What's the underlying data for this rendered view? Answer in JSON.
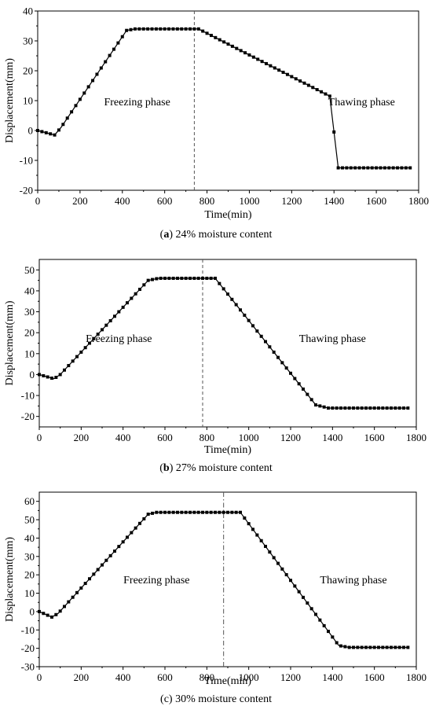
{
  "chart_data": [
    {
      "type": "line",
      "caption_letter": "a",
      "caption_text": " 24% moisture content",
      "xlabel": "Time(min)",
      "ylabel": "Displacement(mm)",
      "xlim": [
        0,
        1800
      ],
      "ylim": [
        -20,
        40
      ],
      "xticks": [
        0,
        200,
        400,
        600,
        800,
        1000,
        1200,
        1400,
        1600,
        1800
      ],
      "yticks": [
        -20,
        -10,
        0,
        10,
        20,
        30,
        40
      ],
      "divider_x": 740,
      "divider_style": "dashed",
      "annotations": [
        {
          "text": "Freezing phase",
          "x": 470,
          "y": 9.5
        },
        {
          "text": "Thawing phase",
          "x": 1530,
          "y": 9.5
        }
      ],
      "series": [
        {
          "x": [
            0,
            80,
            110,
            420,
            460,
            760,
            1380,
            1420,
            1760
          ],
          "y": [
            0,
            -1.5,
            1,
            33.5,
            34,
            34,
            11.5,
            -12.5,
            -12.5
          ]
        }
      ],
      "marker_step": 20
    },
    {
      "type": "line",
      "caption_letter": "b",
      "caption_text": " 27% moisture content",
      "xlabel": "Time(min)",
      "ylabel": "Displacement(mm)",
      "xlim": [
        0,
        1800
      ],
      "ylim": [
        -25,
        55
      ],
      "xticks": [
        0,
        200,
        400,
        600,
        800,
        1000,
        1200,
        1400,
        1600,
        1800
      ],
      "yticks": [
        -20,
        -10,
        0,
        10,
        20,
        30,
        40,
        50
      ],
      "divider_x": 780,
      "divider_style": "dashed",
      "annotations": [
        {
          "text": "Freezing phase",
          "x": 380,
          "y": 17
        },
        {
          "text": "Thawing phase",
          "x": 1400,
          "y": 17
        }
      ],
      "series": [
        {
          "x": [
            0,
            70,
            100,
            520,
            570,
            840,
            1320,
            1380,
            1760
          ],
          "y": [
            0,
            -2,
            0,
            45,
            46,
            46,
            -14.5,
            -16,
            -16
          ]
        }
      ],
      "marker_step": 20
    },
    {
      "type": "line",
      "caption_letter": "c",
      "caption_text": "30% moisture content",
      "xlabel": "Time(min)",
      "ylabel": "Displacement(mm)",
      "xlim": [
        0,
        1800
      ],
      "ylim": [
        -30,
        65
      ],
      "xticks": [
        0,
        200,
        400,
        600,
        800,
        1000,
        1200,
        1400,
        1600,
        1800
      ],
      "yticks": [
        -30,
        -20,
        -10,
        0,
        10,
        20,
        30,
        40,
        50,
        60
      ],
      "divider_x": 880,
      "divider_style": "dashdot",
      "annotations": [
        {
          "text": "Freezing phase",
          "x": 560,
          "y": 17
        },
        {
          "text": "Thawing phase",
          "x": 1500,
          "y": 17
        }
      ],
      "series": [
        {
          "x": [
            0,
            60,
            90,
            520,
            560,
            960,
            1430,
            1480,
            1760
          ],
          "y": [
            0,
            -3,
            -1,
            53,
            54,
            54,
            -18.5,
            -19.5,
            -19.5
          ]
        }
      ],
      "marker_step": 20
    }
  ]
}
